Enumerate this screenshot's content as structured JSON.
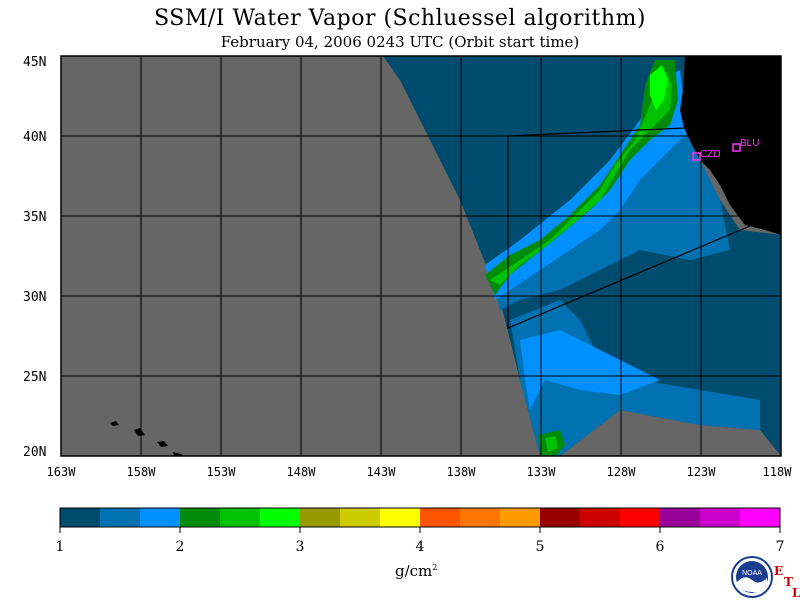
{
  "title": "SSM/I Water Vapor (Schluessel algorithm)",
  "subtitle": "February 04, 2006  0243 UTC  (Orbit start time)",
  "map": {
    "land_color": "#000000",
    "no_data_color": "#666666",
    "lat_labels": [
      "45N",
      "40N",
      "35N",
      "30N",
      "25N",
      "20N"
    ],
    "lon_labels": [
      "163W",
      "158W",
      "153W",
      "148W",
      "143W",
      "138W",
      "133W",
      "128W",
      "123W",
      "118W"
    ],
    "stations": [
      {
        "name": "CZD",
        "color": "#ff33ff"
      },
      {
        "name": "BLU",
        "color": "#ff33ff"
      }
    ]
  },
  "colorbar": {
    "colors": [
      "#004c6e",
      "#0072b2",
      "#0090ff",
      "#008b0b",
      "#00c200",
      "#00ff00",
      "#999900",
      "#cccc00",
      "#ffff00",
      "#ff5500",
      "#ff7700",
      "#ff9900",
      "#990000",
      "#cc0000",
      "#ff0000",
      "#990099",
      "#cc00cc",
      "#ff00ff"
    ],
    "ticks": [
      "1",
      "2",
      "3",
      "4",
      "5",
      "6",
      "7"
    ],
    "units": "g/cm",
    "units_exponent": "2"
  },
  "logo": {
    "name": "NOAA",
    "etl_letters": [
      "E",
      "T",
      "L"
    ]
  }
}
